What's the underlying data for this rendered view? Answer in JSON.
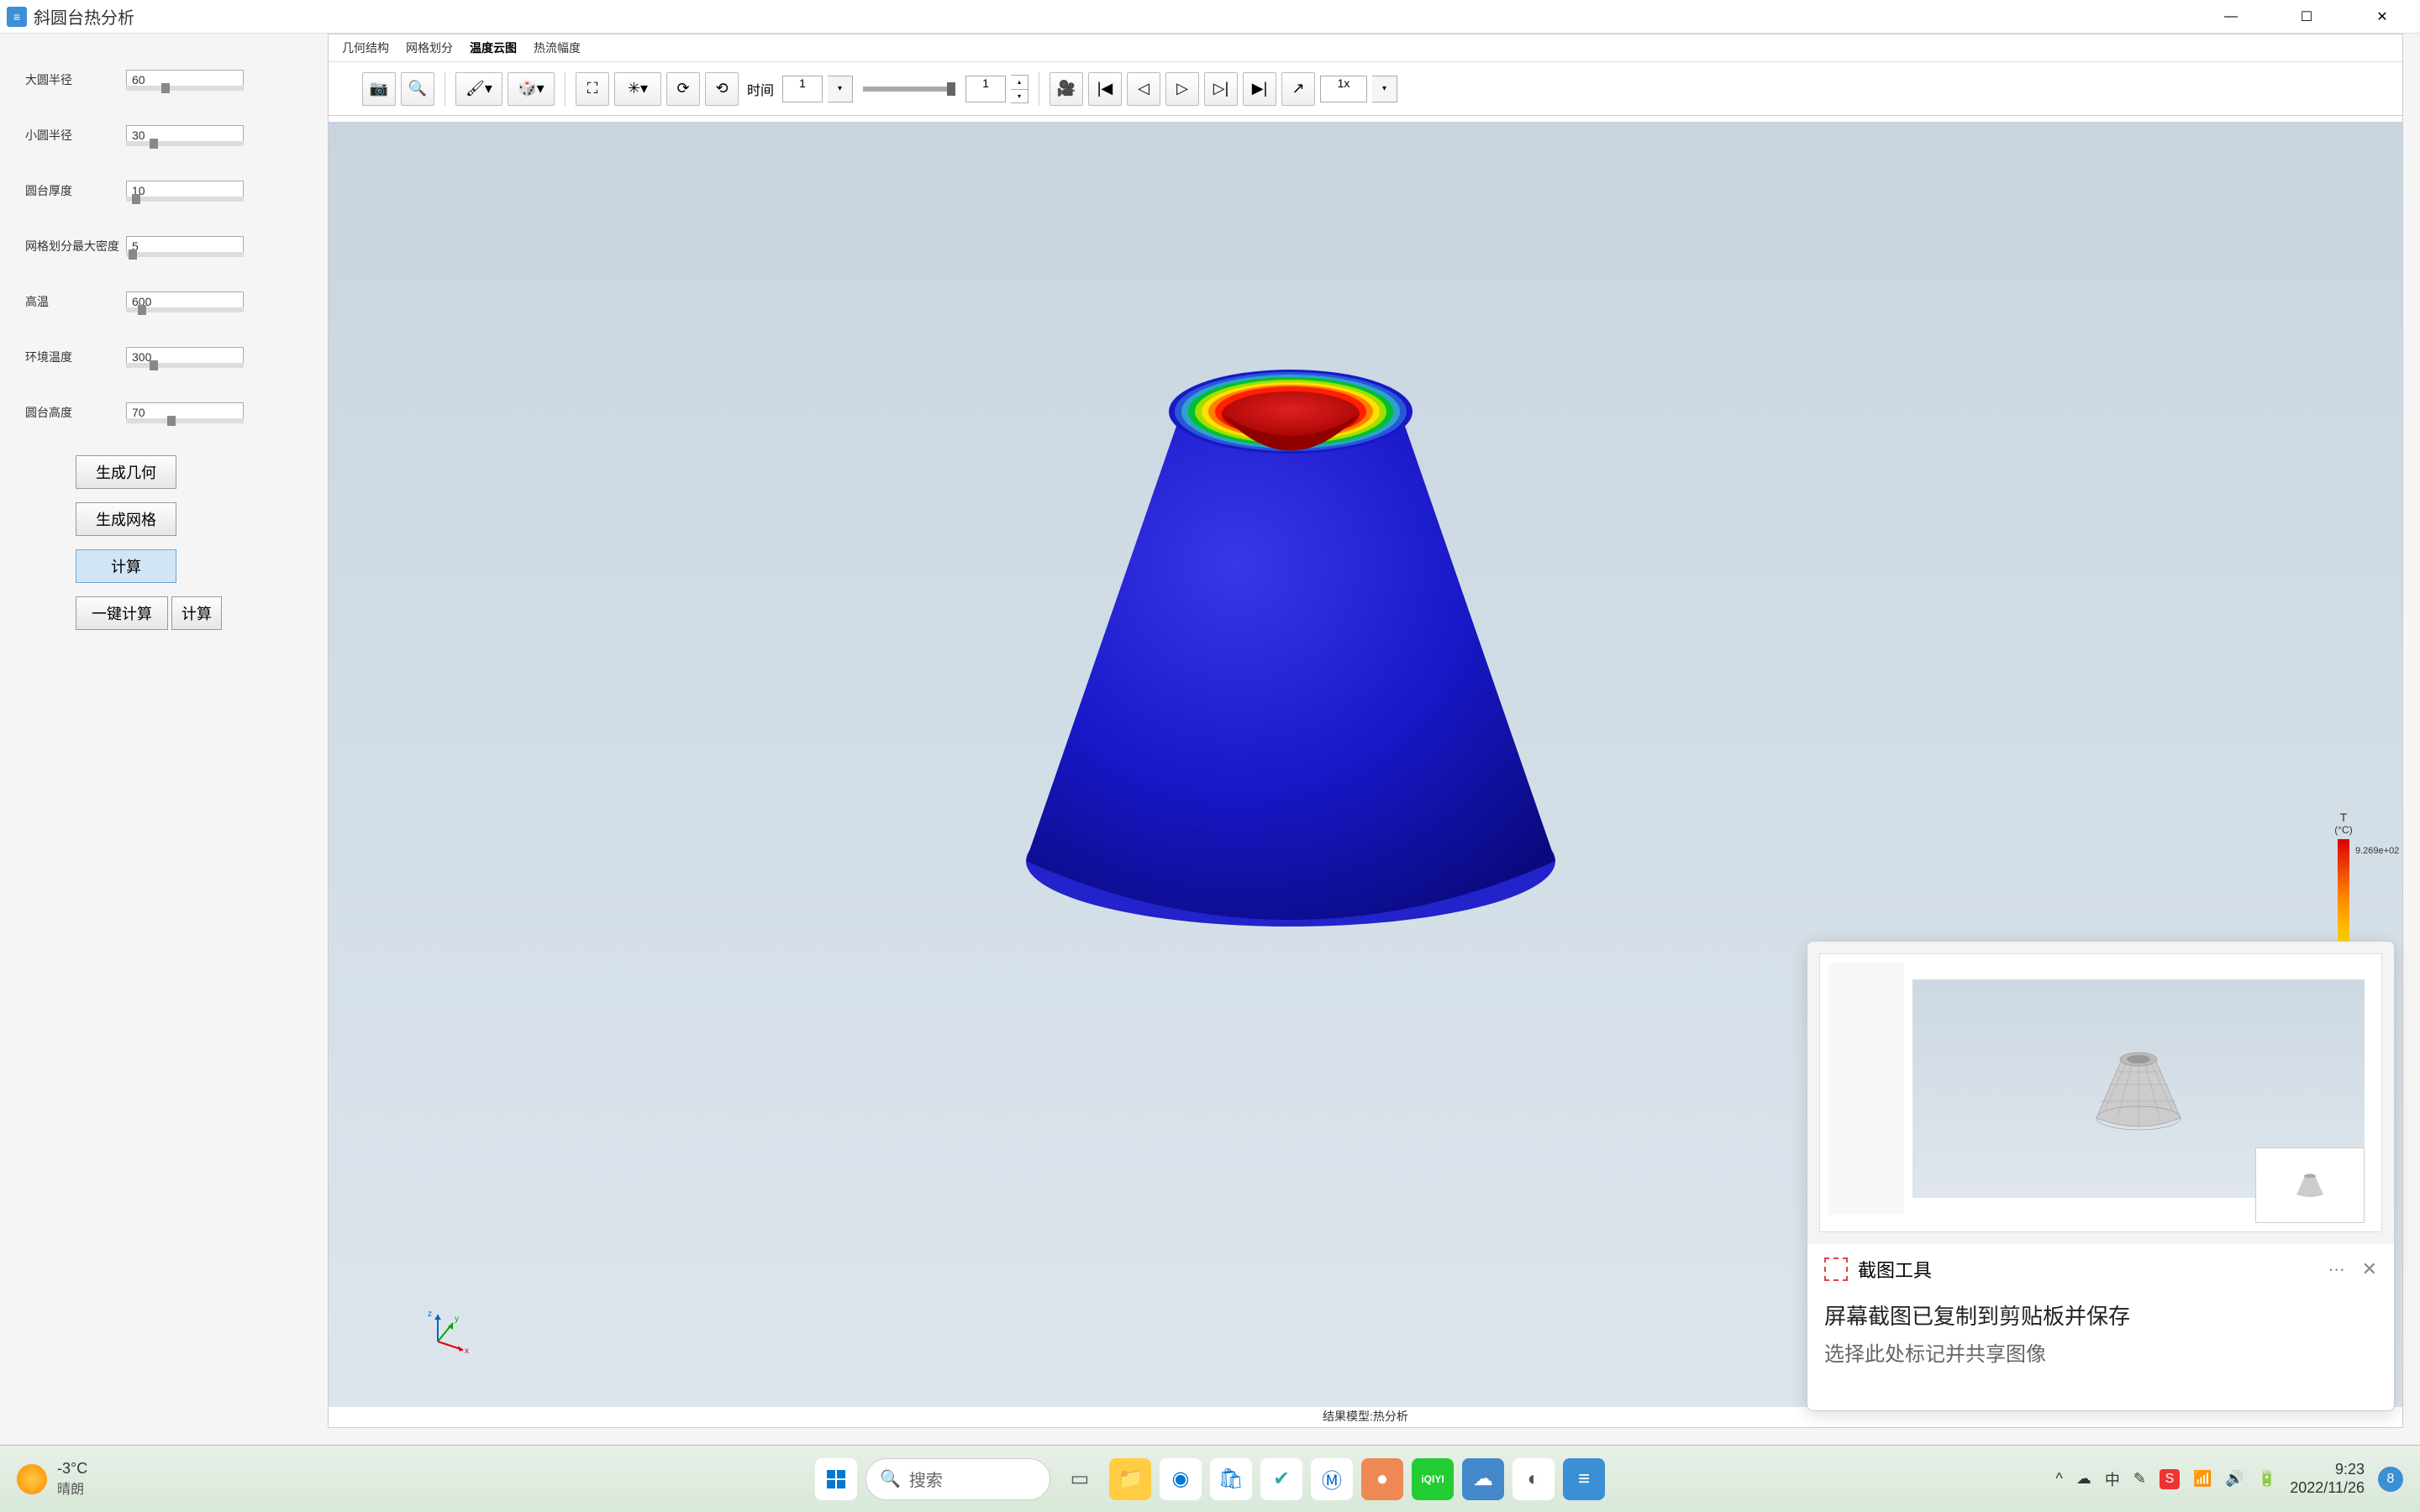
{
  "window": {
    "title": "斜圆台热分析",
    "app_icon_text": "≡"
  },
  "params": {
    "items": [
      {
        "label": "大圆半径",
        "value": "60",
        "knob_pct": 30
      },
      {
        "label": "小圆半径",
        "value": "30",
        "knob_pct": 20
      },
      {
        "label": "圆台厚度",
        "value": "10",
        "knob_pct": 5
      },
      {
        "label": "网格划分最大密度",
        "value": "5",
        "knob_pct": 2
      },
      {
        "label": "高温",
        "value": "600",
        "knob_pct": 10
      },
      {
        "label": "环境温度",
        "value": "300",
        "knob_pct": 20
      },
      {
        "label": "圆台高度",
        "value": "70",
        "knob_pct": 35
      }
    ],
    "buttons": {
      "gen_geom": "生成几何",
      "gen_mesh": "生成网格",
      "compute": "计算",
      "one_click": "一键计算",
      "compute2": "计算"
    }
  },
  "tabs": [
    "几何结构",
    "网格划分",
    "温度云图",
    "热流幅度"
  ],
  "active_tab": 2,
  "toolbar": {
    "time_label": "时间",
    "time_value": "1",
    "step_value": "1",
    "speed": "1x"
  },
  "viewport": {
    "bg_top": "#c8d5e0",
    "bg_bottom": "#dde5ec",
    "title": "结果模型:热分析",
    "cone": {
      "outer_color": "#1818c8",
      "outer_shadow": "#0a0a80",
      "rim_colors": [
        "#00c030",
        "#a0e000",
        "#ffe000",
        "#ff8000",
        "#ff2000",
        "#c00000"
      ],
      "inner_color": "#c00000"
    },
    "triad": {
      "x": "#d00",
      "y": "#0a0",
      "z": "#06c"
    }
  },
  "legend": {
    "title": "T",
    "unit": "(°C)",
    "max": "9.269e+02"
  },
  "notification": {
    "tool": "截图工具",
    "line1": "屏幕截图已复制到剪贴板并保存",
    "line2": "选择此处标记并共享图像"
  },
  "taskbar": {
    "weather_temp": "-3°C",
    "weather_desc": "晴朗",
    "search_placeholder": "搜索",
    "icons": [
      {
        "name": "start",
        "bg": "#fff",
        "glyph": "⊞",
        "color": "#0078d4"
      },
      {
        "name": "search",
        "bg": "#fff",
        "glyph": "",
        "color": "#666"
      },
      {
        "name": "task-view",
        "bg": "transparent",
        "glyph": "▭",
        "color": "#555"
      },
      {
        "name": "explorer",
        "bg": "#ffcc44",
        "glyph": "📁",
        "color": "#fff"
      },
      {
        "name": "edge",
        "bg": "#fff",
        "glyph": "◉",
        "color": "#0078d4"
      },
      {
        "name": "store",
        "bg": "#fff",
        "glyph": "🛍",
        "color": "#0078d4"
      },
      {
        "name": "app1",
        "bg": "#fff",
        "glyph": "✔",
        "color": "#3aa"
      },
      {
        "name": "app2",
        "bg": "#fff",
        "glyph": "Ⓜ",
        "color": "#06c"
      },
      {
        "name": "app3",
        "bg": "#e85",
        "glyph": "●",
        "color": "#fff"
      },
      {
        "name": "iqiyi",
        "bg": "#2c3",
        "glyph": "iQIYI",
        "color": "#fff"
      },
      {
        "name": "app5",
        "bg": "#48c",
        "glyph": "☁",
        "color": "#fff"
      },
      {
        "name": "app6",
        "bg": "#fff",
        "glyph": "◐",
        "color": "#555"
      },
      {
        "name": "app7",
        "bg": "#3b8fd4",
        "glyph": "≡",
        "color": "#fff"
      }
    ],
    "tray": {
      "ime": "中",
      "time": "9:23",
      "date": "2022/11/26",
      "badge": "8"
    }
  }
}
